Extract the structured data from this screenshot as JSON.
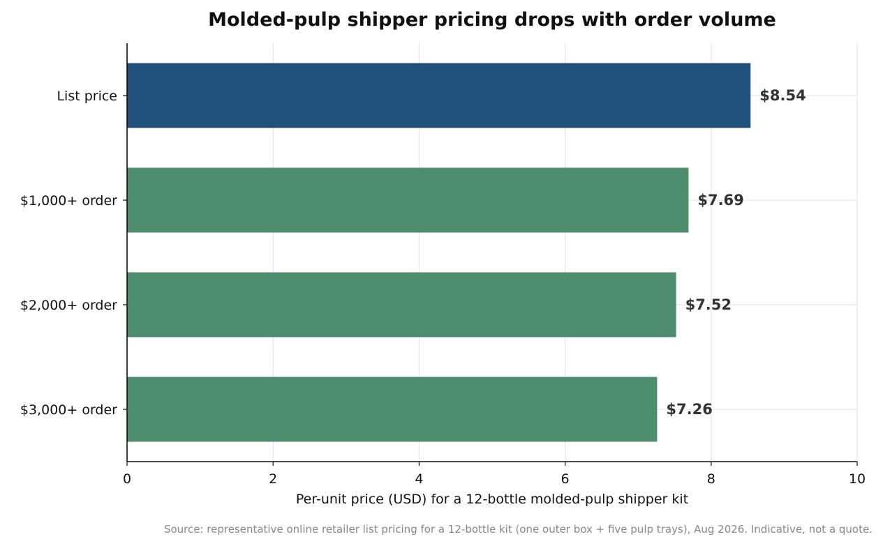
{
  "chart_data": {
    "type": "bar",
    "orientation": "horizontal",
    "title": "Molded-pulp shipper pricing drops with order volume",
    "xlabel": "Per-unit price (USD) for a 12-bottle molded-pulp shipper kit",
    "ylabel": "",
    "xlim": [
      0,
      10
    ],
    "xticks": [
      0,
      2,
      4,
      6,
      8,
      10
    ],
    "grid": "vertical and horizontal, light gray",
    "legend": "none",
    "categories": [
      "List price",
      "$1,000+ order",
      "$2,000+ order",
      "$3,000+ order"
    ],
    "values": [
      8.54,
      7.69,
      7.52,
      7.26
    ],
    "value_labels": [
      "$8.54",
      "$7.69",
      "$7.52",
      "$7.26"
    ],
    "bar_colors": [
      "#21507a",
      "#4e8c6e",
      "#4e8c6e",
      "#4e8c6e"
    ],
    "source_note": "Source: representative online retailer list pricing for a 12-bottle kit (one outer box + five pulp trays), Aug 2026. Indicative, not a quote."
  }
}
